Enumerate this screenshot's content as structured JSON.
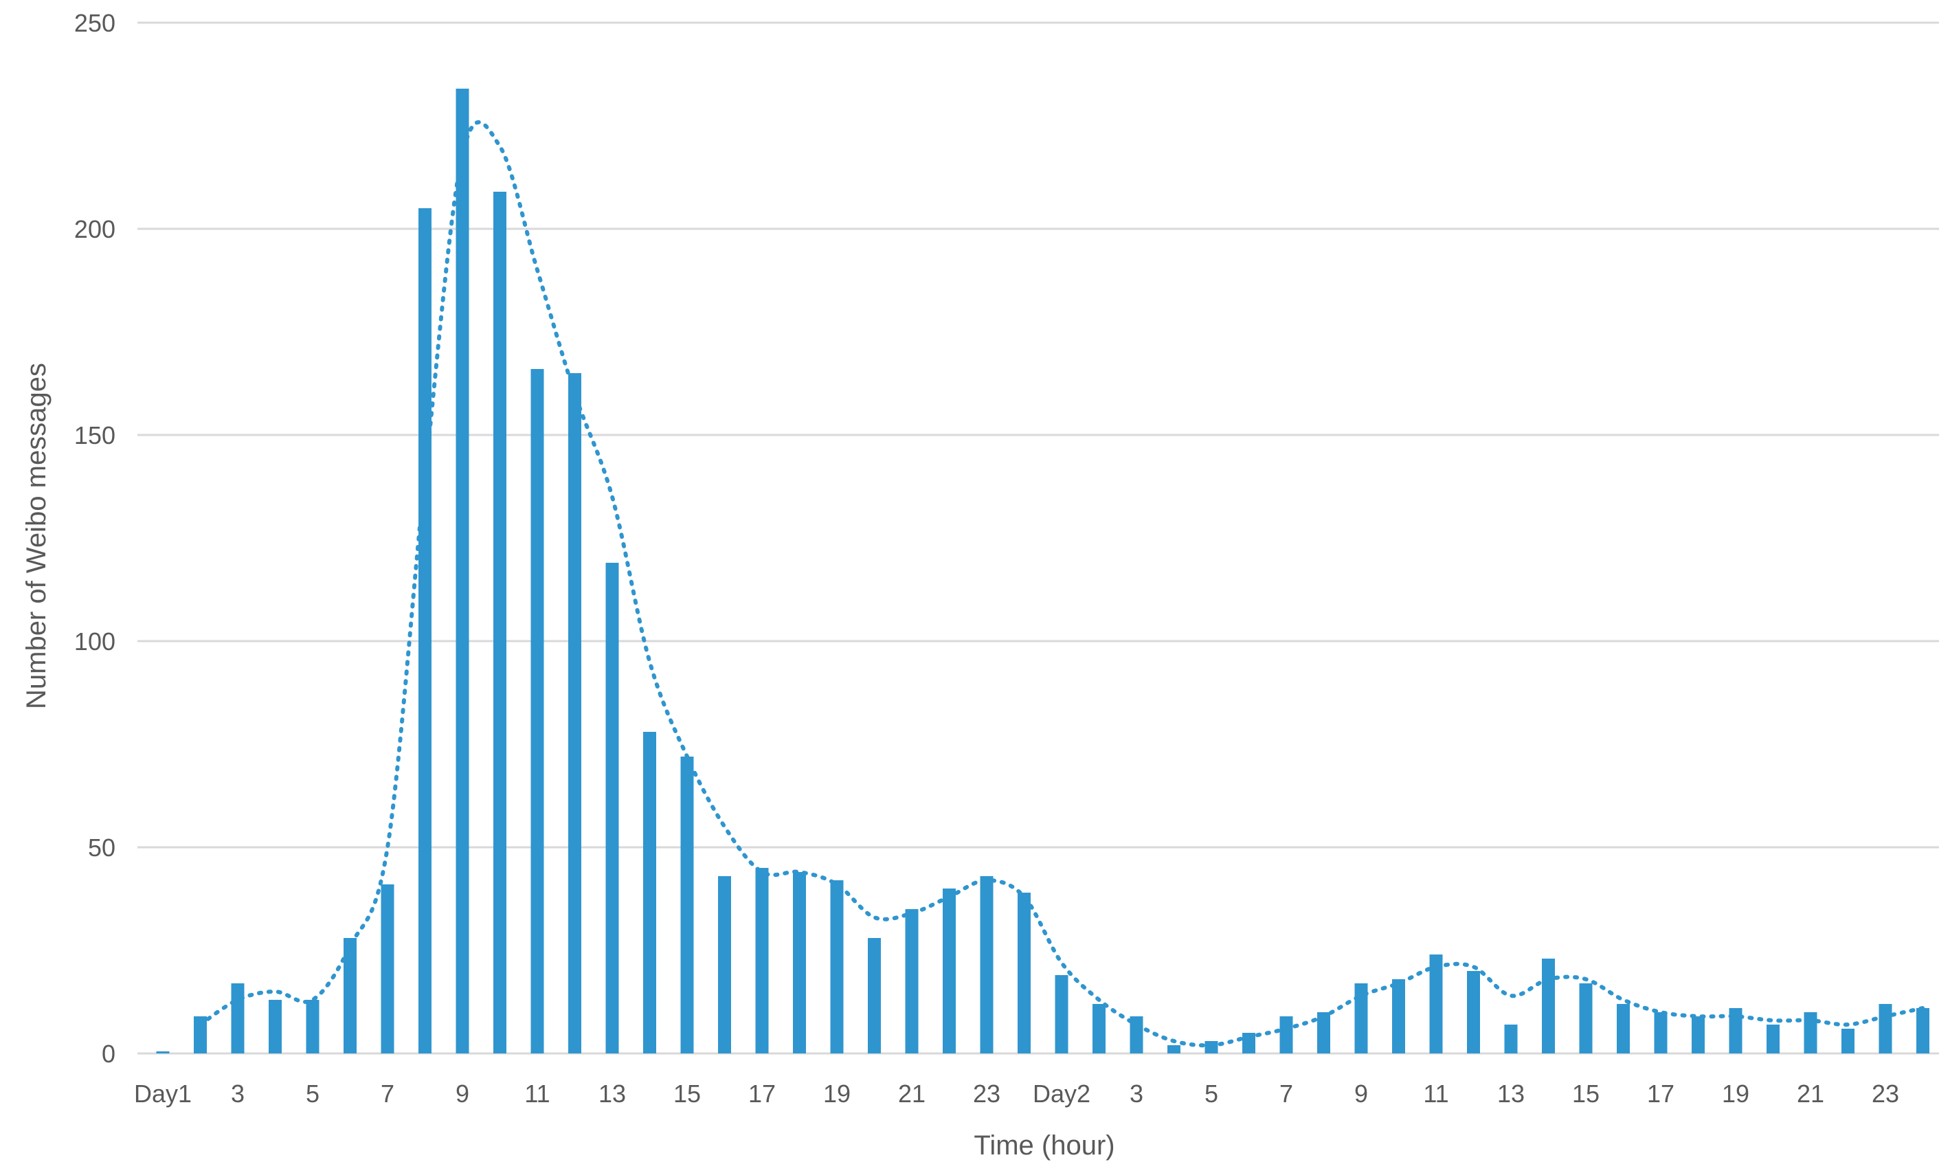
{
  "chart_data": {
    "type": "bar",
    "xlabel": "Time (hour)",
    "ylabel": "Number of Weibo messages",
    "ylim": [
      0,
      250
    ],
    "yticks": [
      "0",
      "50",
      "100",
      "150",
      "200",
      "250"
    ],
    "categories": [
      "Day1",
      "2",
      "3",
      "4",
      "5",
      "6",
      "7",
      "8",
      "9",
      "10",
      "11",
      "12",
      "13",
      "14",
      "15",
      "16",
      "17",
      "18",
      "19",
      "20",
      "21",
      "22",
      "23",
      "24",
      "Day2",
      "2",
      "3",
      "4",
      "5",
      "6",
      "7",
      "8",
      "9",
      "10",
      "11",
      "12",
      "13",
      "14",
      "15",
      "16",
      "17",
      "18",
      "19",
      "20",
      "21",
      "22",
      "23",
      "24"
    ],
    "tick_labels": [
      "Day1",
      "",
      "3",
      "",
      "5",
      "",
      "7",
      "",
      "9",
      "",
      "11",
      "",
      "13",
      "",
      "15",
      "",
      "17",
      "",
      "19",
      "",
      "21",
      "",
      "23",
      "",
      "Day2",
      "",
      "3",
      "",
      "5",
      "",
      "7",
      "",
      "9",
      "",
      "11",
      "",
      "13",
      "",
      "15",
      "",
      "17",
      "",
      "19",
      "",
      "21",
      "",
      "23",
      ""
    ],
    "series": [
      {
        "values": [
          0.5,
          9,
          17,
          13,
          13,
          28,
          41,
          205,
          234,
          209,
          166,
          165,
          119,
          78,
          72,
          43,
          45,
          44,
          42,
          28,
          35,
          40,
          43,
          39,
          19,
          12,
          9,
          2,
          3,
          5,
          9,
          10,
          17,
          18,
          24,
          20,
          7,
          23,
          17,
          12,
          10,
          9,
          11,
          7,
          10,
          6,
          12,
          11
        ],
        "color": "#2f95cf"
      }
    ],
    "trendline": {
      "style": "dotted",
      "values": [
        null,
        7,
        13,
        15,
        13,
        26,
        50,
        140,
        218,
        220,
        190,
        160,
        135,
        95,
        72,
        55,
        44,
        44,
        41,
        33,
        34,
        38,
        42,
        38,
        22,
        13,
        7,
        3,
        2,
        4,
        6,
        9,
        14,
        17,
        21,
        21,
        14,
        18,
        18,
        13,
        10,
        9,
        9,
        8,
        8,
        7,
        9,
        11
      ]
    },
    "grid": true,
    "legend": "none"
  }
}
